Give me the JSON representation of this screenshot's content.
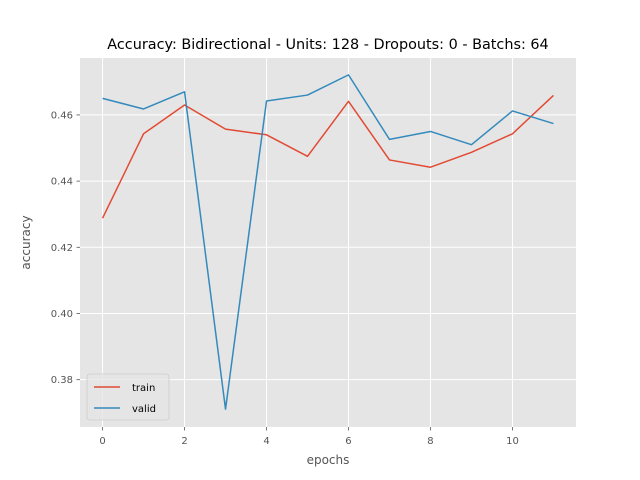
{
  "chart_data": {
    "type": "line",
    "title": "Accuracy: Bidirectional - Units: 128 - Dropouts: 0 - Batchs: 64",
    "xlabel": "epochs",
    "ylabel": "accuracy",
    "x": [
      0,
      1,
      2,
      3,
      4,
      5,
      6,
      7,
      8,
      9,
      10,
      11
    ],
    "xlim": [
      -0.55,
      11.55
    ],
    "ylim": [
      0.3657,
      0.4772
    ],
    "xticks": [
      0,
      2,
      4,
      6,
      8,
      10
    ],
    "xtick_labels": [
      "0",
      "2",
      "4",
      "6",
      "8",
      "10"
    ],
    "yticks": [
      0.38,
      0.4,
      0.42,
      0.44,
      0.46
    ],
    "ytick_labels": [
      "0.38",
      "0.40",
      "0.42",
      "0.44",
      "0.46"
    ],
    "grid": true,
    "legend_position": "lower-left",
    "series": [
      {
        "name": "train",
        "color": "#E24A33",
        "values": [
          0.4288,
          0.4543,
          0.463,
          0.4557,
          0.454,
          0.4475,
          0.4641,
          0.4464,
          0.4442,
          0.4487,
          0.4543,
          0.4659
        ]
      },
      {
        "name": "valid",
        "color": "#348ABD",
        "values": [
          0.465,
          0.4618,
          0.467,
          0.3711,
          0.4642,
          0.466,
          0.4721,
          0.4526,
          0.455,
          0.451,
          0.4612,
          0.4574
        ]
      }
    ],
    "colors": {
      "plot_background": "#E5E5E5",
      "grid": "#FFFFFF"
    }
  }
}
